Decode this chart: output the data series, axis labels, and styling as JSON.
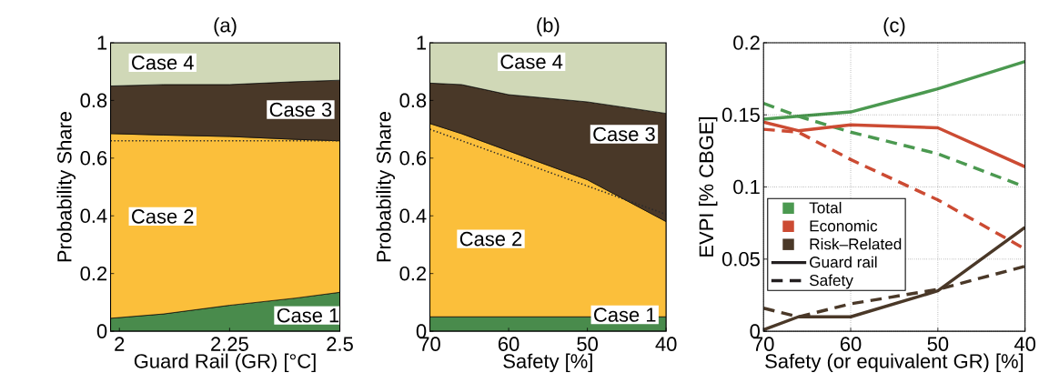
{
  "chart_data": [
    {
      "type": "area",
      "title": "(a)",
      "xlabel": "Guard Rail (GR) [°C]",
      "ylabel": "Probability Share",
      "stacked": true,
      "x": [
        1.98,
        2.1,
        2.25,
        2.4,
        2.5
      ],
      "xlim": [
        1.98,
        2.5
      ],
      "xticks": [
        2,
        2.25,
        2.5
      ],
      "ylim": [
        0,
        1
      ],
      "yticks": [
        0,
        0.2,
        0.4,
        0.6,
        0.8,
        1
      ],
      "series": [
        {
          "name": "Case 1",
          "color": "#498b4c",
          "values": [
            0.045,
            0.06,
            0.09,
            0.115,
            0.135
          ]
        },
        {
          "name": "Case 2",
          "color": "#fbbf3b",
          "values": [
            0.64,
            0.62,
            0.585,
            0.55,
            0.525
          ]
        },
        {
          "name": "Case 3",
          "color": "#493828",
          "values": [
            0.165,
            0.175,
            0.18,
            0.2,
            0.21
          ]
        },
        {
          "name": "Case 4",
          "color": "#d0d8b7",
          "values": [
            0.15,
            0.145,
            0.145,
            0.135,
            0.13
          ]
        },
        {
          "type": "line",
          "x": [
            1.98,
            2.5
          ],
          "values": [
            0.66,
            0.66
          ],
          "color": "#2a2a2a",
          "line_style": "dotted"
        }
      ]
    },
    {
      "type": "area",
      "title": "(b)",
      "xlabel": "Safety [%]",
      "ylabel": "Probability Share",
      "stacked": true,
      "x": [
        70,
        66,
        60,
        50,
        40
      ],
      "xlim": [
        70,
        40
      ],
      "xticks": [
        70,
        60,
        50,
        40
      ],
      "ylim": [
        0,
        1
      ],
      "yticks": [
        0,
        0.2,
        0.4,
        0.6,
        0.8,
        1
      ],
      "series": [
        {
          "name": "Case 1",
          "color": "#498b4c",
          "values": [
            0.05,
            0.05,
            0.05,
            0.05,
            0.05
          ]
        },
        {
          "name": "Case 2",
          "color": "#fbbf3b",
          "values": [
            0.67,
            0.635,
            0.575,
            0.475,
            0.33
          ]
        },
        {
          "name": "Case 3",
          "color": "#493828",
          "values": [
            0.14,
            0.17,
            0.195,
            0.27,
            0.375
          ]
        },
        {
          "name": "Case 4",
          "color": "#d0d8b7",
          "values": [
            0.14,
            0.145,
            0.18,
            0.205,
            0.245
          ]
        },
        {
          "type": "line",
          "x": [
            70,
            40
          ],
          "values": [
            0.7,
            0.405
          ],
          "color": "#2a2a2a",
          "line_style": "dotted"
        }
      ]
    },
    {
      "type": "line",
      "title": "(c)",
      "xlabel": "Safety (or equivalent GR) [%]",
      "ylabel": "EVPI [% CBGE]",
      "grid": true,
      "legend": "bottom left",
      "x": [
        70,
        66,
        60,
        50,
        40
      ],
      "xlim": [
        70,
        40
      ],
      "xticks": [
        70,
        60,
        50,
        40
      ],
      "ylim": [
        0,
        0.2
      ],
      "yticks": [
        0,
        0.05,
        0.1,
        0.15,
        0.2
      ],
      "series": [
        {
          "name": "Total",
          "color": "#4b9950",
          "line_style": "solid",
          "values": [
            0.147,
            0.149,
            0.152,
            0.168,
            0.187
          ]
        },
        {
          "color": "#4b9950",
          "line_style": "dashed",
          "values": [
            0.158,
            0.149,
            0.138,
            0.123,
            0.1
          ]
        },
        {
          "name": "Economic",
          "color": "#cc4b33",
          "line_style": "solid",
          "values": [
            0.145,
            0.139,
            0.143,
            0.141,
            0.114
          ]
        },
        {
          "color": "#cc4b33",
          "line_style": "dashed",
          "values": [
            0.14,
            0.138,
            0.119,
            0.091,
            0.057
          ]
        },
        {
          "name": "Risk–Related",
          "color": "#4a3828",
          "line_style": "solid",
          "values": [
            0.001,
            0.01,
            0.01,
            0.028,
            0.072
          ]
        },
        {
          "color": "#4a3828",
          "line_style": "dashed",
          "values": [
            0.016,
            0.01,
            0.019,
            0.029,
            0.045
          ]
        },
        {
          "name": "Guard rail",
          "color": "#231f20",
          "line_style": "solid",
          "values": [
            null,
            null,
            null,
            null,
            null
          ]
        },
        {
          "name": "Safety",
          "color": "#231f20",
          "line_style": "dashed",
          "values": [
            null,
            null,
            null,
            null,
            null
          ]
        }
      ]
    }
  ]
}
